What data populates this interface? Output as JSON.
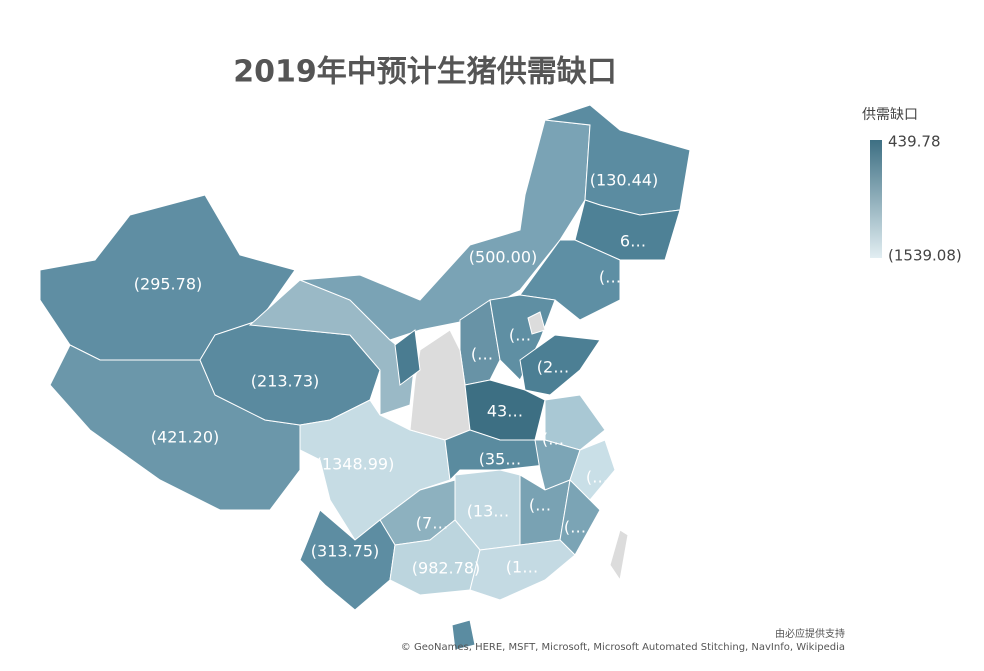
{
  "title": "2019年中预计生猪供需缺口",
  "legend": {
    "title": "供需缺口",
    "max_label": "439.78",
    "min_label": "(1539.08)"
  },
  "regions": [
    {
      "label": "(295.78)",
      "color": "#5f8ea3"
    },
    {
      "label": "(421.20)",
      "color": "#6b97aa"
    },
    {
      "label": "(213.73)",
      "color": "#5a8a9f"
    },
    {
      "label": "(500.00)",
      "color": "#7aa3b5"
    },
    {
      "label": "(130.44)",
      "color": "#5b8ca1"
    },
    {
      "label": "6…",
      "color": "#4e8196"
    },
    {
      "label": "(…",
      "color": "#5e8fa4"
    },
    {
      "label": "(…",
      "color": "#6893a6"
    },
    {
      "label": "(…",
      "color": "#5f8fa3"
    },
    {
      "label": "(2…",
      "color": "#4c7f94"
    },
    {
      "label": "43…",
      "color": "#3d6f83"
    },
    {
      "label": "(1348.99)",
      "color": "#c6dce4"
    },
    {
      "label": "(35…",
      "color": "#5a8b9f"
    },
    {
      "label": "(…",
      "color": "#7ca5b6"
    },
    {
      "label": "(…",
      "color": "#c9dfe7"
    },
    {
      "label": "(…",
      "color": "#79a2b3"
    },
    {
      "label": "(…",
      "color": "#7ba4b5"
    },
    {
      "label": "(13…",
      "color": "#c2d9e2"
    },
    {
      "label": "(7…",
      "color": "#8db1bf"
    },
    {
      "label": "(313.75)",
      "color": "#5d8da2"
    },
    {
      "label": "(982.78)",
      "color": "#bcd5de"
    },
    {
      "label": "(1…",
      "color": "#c4dae3"
    },
    {
      "label": "",
      "color": "#5b8ca1"
    }
  ],
  "attribution": [
    "由必应提供支持",
    "© GeoNames, HERE, MSFT, Microsoft, Microsoft Automated Stitching, NavInfo, Wikipedia"
  ]
}
